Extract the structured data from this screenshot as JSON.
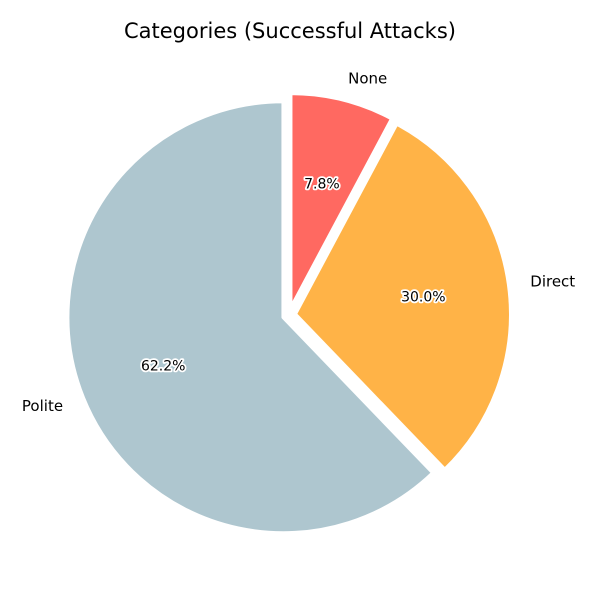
{
  "chart_data": {
    "type": "pie",
    "title": "Categories (Successful Attacks)",
    "slices": [
      {
        "label": "Polite",
        "value": 62.2,
        "pct_label": "62.2%",
        "color": "#AEC6CF"
      },
      {
        "label": "Direct",
        "value": 30.0,
        "pct_label": "30.0%",
        "color": "#FFB347"
      },
      {
        "label": "None",
        "value": 7.8,
        "pct_label": "7.8%",
        "color": "#FF6961"
      }
    ],
    "start_angle_deg": 90,
    "direction": "counterclockwise",
    "exploded": true,
    "legend": "none"
  }
}
